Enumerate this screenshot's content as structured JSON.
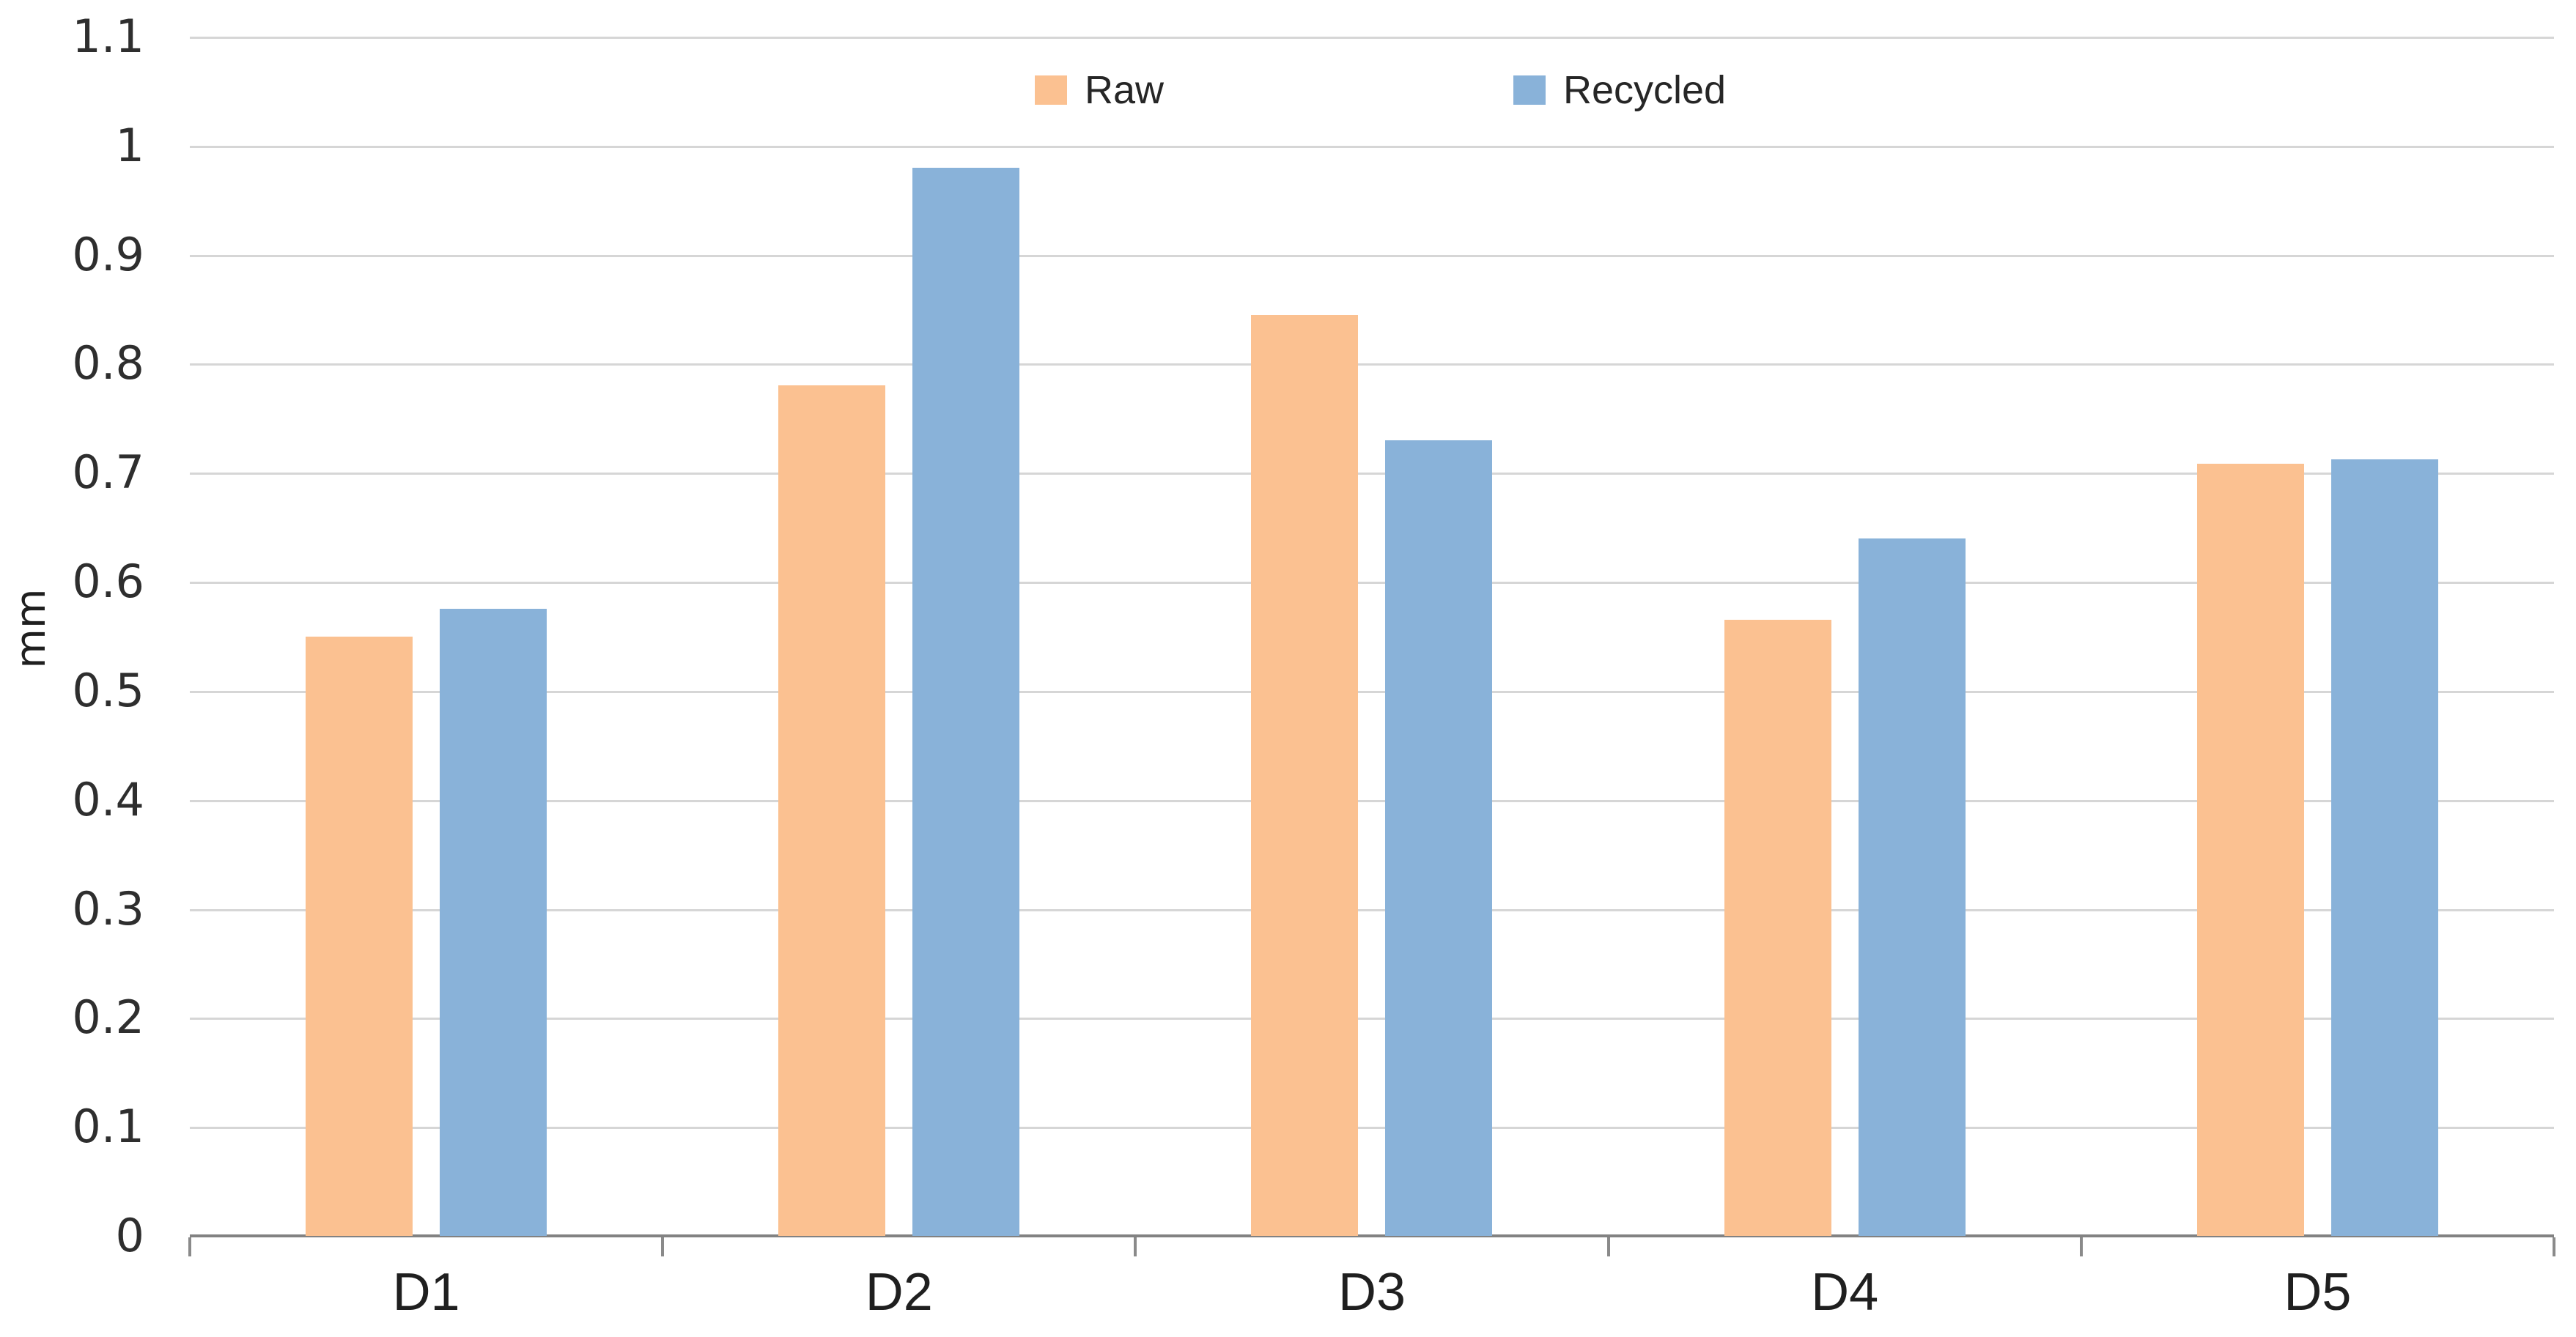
{
  "chart_data": {
    "type": "bar",
    "title": "",
    "xlabel": "",
    "ylabel": "mm",
    "ylim": [
      0,
      1.1
    ],
    "ytick_step": 0.1,
    "ytick_labels": [
      "0",
      "0.1",
      "0.2",
      "0.3",
      "0.4",
      "0.5",
      "0.6",
      "0.7",
      "0.8",
      "0.9",
      "1",
      "1.1"
    ],
    "grid": true,
    "legend_position": "top-center",
    "categories": [
      "D1",
      "D2",
      "D3",
      "D4",
      "D5"
    ],
    "series": [
      {
        "name": "Raw",
        "color": "#FBC191",
        "values": [
          0.55,
          0.78,
          0.845,
          0.565,
          0.708
        ]
      },
      {
        "name": "Recycled",
        "color": "#89B2D9",
        "values": [
          0.575,
          0.98,
          0.73,
          0.64,
          0.712
        ]
      }
    ],
    "colors": {
      "gridline": "#D6D6D6",
      "axis": "#828282",
      "text": "#2E2E2E",
      "background": "#FFFFFF"
    }
  }
}
